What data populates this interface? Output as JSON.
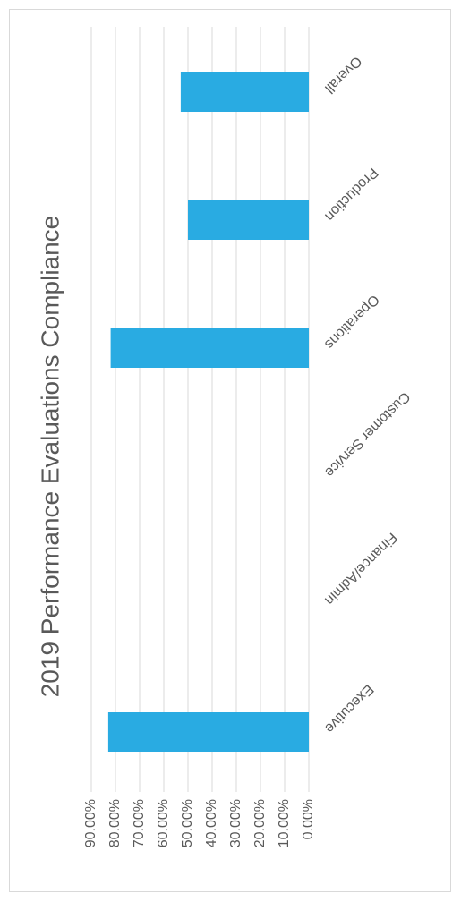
{
  "chart_data": {
    "type": "bar",
    "orientation": "rotated-180",
    "title": "2019 Performance Evaluations Compliance",
    "categories": [
      "Executive",
      "Finance/Admin",
      "Customer Service",
      "Operations",
      "Production",
      "Overall"
    ],
    "values": [
      0.83,
      0,
      0,
      0.82,
      0.5,
      0.53
    ],
    "tick_labels": [
      "90.00%",
      "80.00%",
      "70.00%",
      "60.00%",
      "50.00%",
      "40.00%",
      "30.00%",
      "20.00%",
      "10.00%",
      "0.00%"
    ],
    "ylim": [
      0,
      0.9
    ],
    "grid": true,
    "bar_color": "#29abe2",
    "grid_color": "#d9d9d9"
  }
}
